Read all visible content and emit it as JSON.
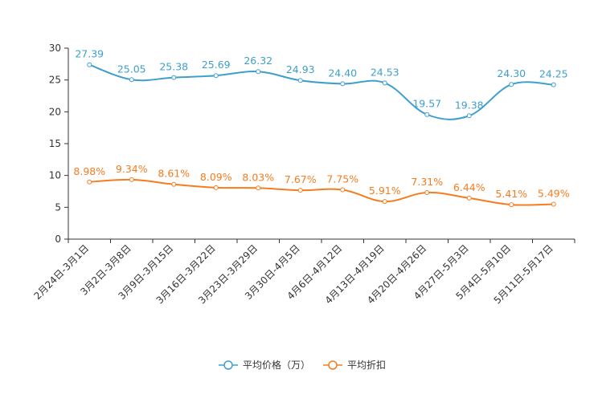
{
  "chart_data": {
    "type": "line",
    "title": "",
    "xlabel": "",
    "ylabel": "",
    "ylim": [
      0,
      30
    ],
    "yticks": [
      0,
      5,
      10,
      15,
      20,
      25,
      30
    ],
    "grid": false,
    "legend_position": "bottom",
    "categories": [
      "2月24日-3月1日",
      "3月2日-3月8日",
      "3月9日-3月15日",
      "3月16日-3月22日",
      "3月23日-3月29日",
      "3月30日-4月5日",
      "4月6日-4月12日",
      "4月13日-4月19日",
      "4月20日-4月26日",
      "4月27日-5月3日",
      "5月4日-5月10日",
      "5月11日-5月17日"
    ],
    "series": [
      {
        "name": "平均价格（万）",
        "color": "#3e9fcd",
        "values": [
          27.39,
          25.05,
          25.38,
          25.69,
          26.32,
          24.93,
          24.4,
          24.53,
          19.57,
          19.38,
          24.3,
          24.25
        ],
        "labels": [
          "27.39",
          "25.05",
          "25.38",
          "25.69",
          "26.32",
          "24.93",
          "24.40",
          "24.53",
          "19.57",
          "19.38",
          "24.30",
          "24.25"
        ]
      },
      {
        "name": "平均折扣",
        "color": "#f57c1f",
        "values": [
          8.98,
          9.34,
          8.61,
          8.09,
          8.03,
          7.67,
          7.75,
          5.91,
          7.31,
          6.44,
          5.41,
          5.49
        ],
        "labels": [
          "8.98%",
          "9.34%",
          "8.61%",
          "8.09%",
          "8.03%",
          "7.67%",
          "7.75%",
          "5.91%",
          "7.31%",
          "6.44%",
          "5.41%",
          "5.49%"
        ]
      }
    ]
  }
}
